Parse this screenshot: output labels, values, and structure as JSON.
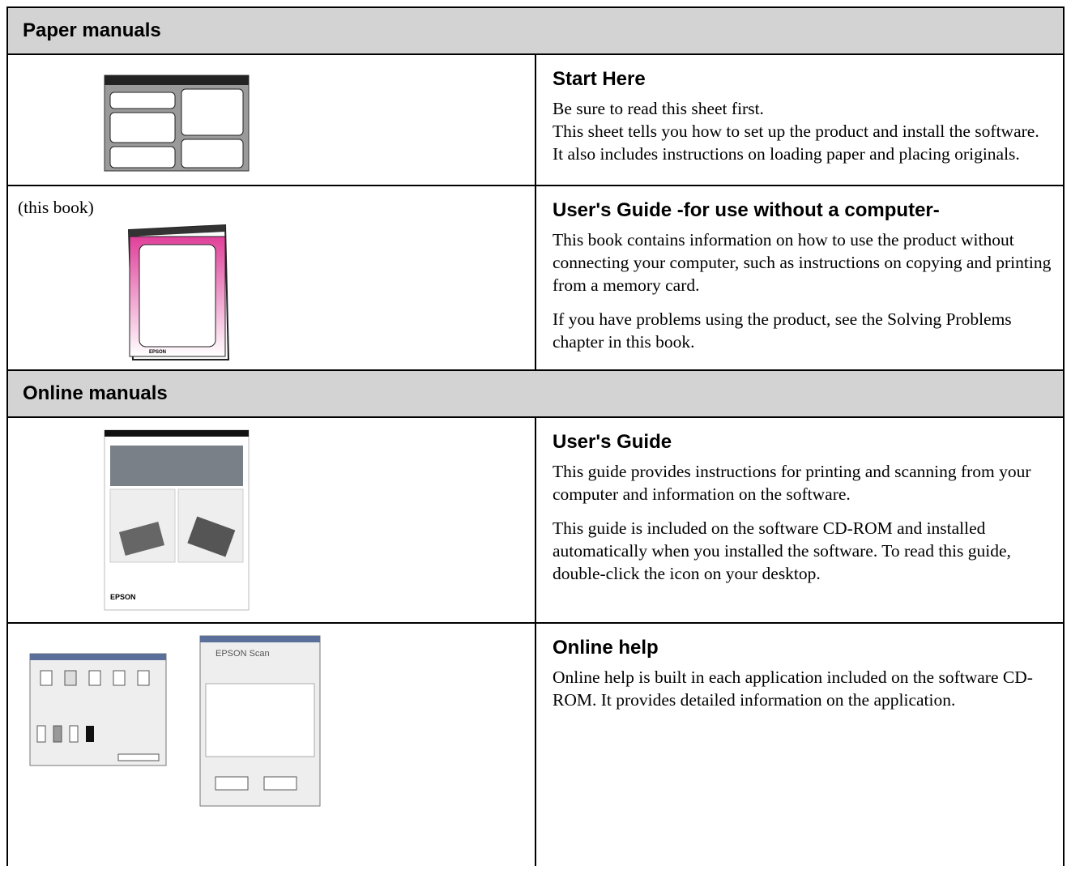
{
  "sections": [
    {
      "title": "Paper manuals",
      "rows": [
        {
          "heading": "Start Here",
          "paragraphs": [
            "Be sure to read this sheet first.",
            "This sheet tells you how to set up the product and install the software. It also includes instructions on loading paper and placing originals."
          ]
        },
        {
          "note": "(this book)",
          "heading": "User's Guide -for use without a computer-",
          "paragraphs": [
            "This book contains information on how to use the product without connecting your computer, such as instructions on copying and printing from a memory card.",
            "If you have problems using the product, see the Solving Problems chapter in this book."
          ]
        }
      ]
    },
    {
      "title": "Online manuals",
      "rows": [
        {
          "heading": "User's Guide",
          "paragraphs": [
            "This guide provides instructions for printing and scanning from your computer and information on the software.",
            "This guide is included on the software CD-ROM and installed automatically when you installed the software. To read this guide, double-click the icon on your desktop."
          ]
        },
        {
          "heading": "Online help",
          "paragraphs": [
            "Online help is built in each application included on the software CD-ROM. It provides detailed information on the application."
          ]
        }
      ]
    }
  ]
}
